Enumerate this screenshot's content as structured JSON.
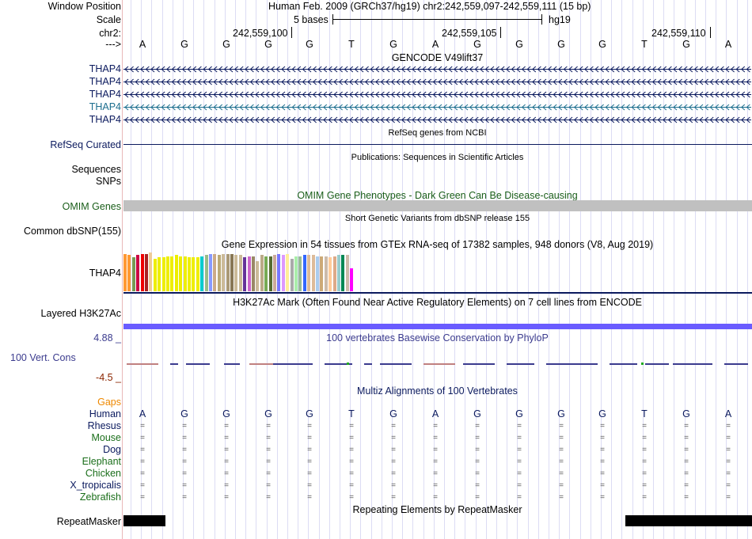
{
  "header": {
    "window_position_label": "Window Position",
    "scale_label": "Scale",
    "chr_label": "chr2:",
    "arrow_label": "--->",
    "assembly_text": "Human Feb. 2009 (GRCh37/hg19)   chr2:242,559,097-242,559,111 (15 bp)",
    "scale_text": "5 bases",
    "scale_db": "hg19",
    "positions": [
      "242,559,100",
      "242,559,105",
      "242,559,110"
    ]
  },
  "sequence": [
    "A",
    "G",
    "G",
    "G",
    "G",
    "T",
    "G",
    "A",
    "G",
    "G",
    "G",
    "G",
    "T",
    "G",
    "A"
  ],
  "gencode": {
    "title": "GENCODE V49lift37",
    "transcripts": [
      {
        "label": "THAP4",
        "color": "#0b1a5e"
      },
      {
        "label": "THAP4",
        "color": "#0b1a5e"
      },
      {
        "label": "THAP4",
        "color": "#0b1a5e"
      },
      {
        "label": "THAP4",
        "color": "#1c6e8e"
      },
      {
        "label": "THAP4",
        "color": "#0b1a5e"
      }
    ]
  },
  "refseq": {
    "title": "RefSeq genes from NCBI",
    "label": "RefSeq Curated"
  },
  "publications": {
    "title": "Publications: Sequences in Scientific Articles",
    "label": "Sequences"
  },
  "snps": {
    "label": "SNPs"
  },
  "omim": {
    "title": "OMIM Gene Phenotypes - Dark Green Can Be Disease-causing",
    "label": "OMIM Genes"
  },
  "dbsnp": {
    "title": "Short Genetic Variants from dbSNP release 155",
    "label": "Common dbSNP(155)"
  },
  "gtex": {
    "title": "Gene Expression in 54 tissues from GTEx RNA-seq of 17382 samples, 948 donors (V8, Aug 2019)",
    "label": "THAP4",
    "tissues": [
      {
        "color": "#ff9933",
        "level": 0.93
      },
      {
        "color": "#ff9933",
        "level": 0.9
      },
      {
        "color": "#779955",
        "level": 0.84
      },
      {
        "color": "#cc0044",
        "level": 0.9
      },
      {
        "color": "#ee0000",
        "level": 0.93
      },
      {
        "color": "#aa2222",
        "level": 0.93
      },
      {
        "color": "#eecc99",
        "level": 0.96
      },
      {
        "color": "#eeee00",
        "level": 0.8
      },
      {
        "color": "#eeee00",
        "level": 0.84
      },
      {
        "color": "#eeee00",
        "level": 0.84
      },
      {
        "color": "#eeee00",
        "level": 0.87
      },
      {
        "color": "#eeee00",
        "level": 0.87
      },
      {
        "color": "#eeee00",
        "level": 0.9
      },
      {
        "color": "#eeee00",
        "level": 0.87
      },
      {
        "color": "#eeee00",
        "level": 0.87
      },
      {
        "color": "#eeee00",
        "level": 0.84
      },
      {
        "color": "#eeee00",
        "level": 0.84
      },
      {
        "color": "#eeee00",
        "level": 0.84
      },
      {
        "color": "#00cccc",
        "level": 0.87
      },
      {
        "color": "#99bb88",
        "level": 0.9
      },
      {
        "color": "#8899ff",
        "level": 0.93
      },
      {
        "color": "#ccaa88",
        "level": 0.93
      },
      {
        "color": "#bbaa77",
        "level": 0.9
      },
      {
        "color": "#ccbb99",
        "level": 0.93
      },
      {
        "color": "#aa9977",
        "level": 0.93
      },
      {
        "color": "#887755",
        "level": 0.93
      },
      {
        "color": "#ccbb99",
        "level": 0.9
      },
      {
        "color": "#ccbb99",
        "level": 0.9
      },
      {
        "color": "#663399",
        "level": 0.84
      },
      {
        "color": "#cc66cc",
        "level": 0.87
      },
      {
        "color": "#998866",
        "level": 0.87
      },
      {
        "color": "#ccbb99",
        "level": 0.74
      },
      {
        "color": "#bbaa88",
        "level": 0.9
      },
      {
        "color": "#77aa55",
        "level": 0.87
      },
      {
        "color": "#556b2f",
        "level": 0.87
      },
      {
        "color": "#ccaa99",
        "level": 0.9
      },
      {
        "color": "#7777ff",
        "level": 0.93
      },
      {
        "color": "#dd99ff",
        "level": 0.9
      },
      {
        "color": "#ffee99",
        "level": 0.93
      },
      {
        "color": "#aaaaaa",
        "level": 0.8
      },
      {
        "color": "#aaeeaa",
        "level": 0.87
      },
      {
        "color": "#99bb99",
        "level": 0.87
      },
      {
        "color": "#3366ff",
        "level": 0.9
      },
      {
        "color": "#ddbb99",
        "level": 0.9
      },
      {
        "color": "#ddbb99",
        "level": 0.9
      },
      {
        "color": "#aaccee",
        "level": 0.87
      },
      {
        "color": "#ccaa77",
        "level": 0.87
      },
      {
        "color": "#ccbbaa",
        "level": 0.87
      },
      {
        "color": "#ffcc99",
        "level": 0.84
      },
      {
        "color": "#ddaa88",
        "level": 0.87
      },
      {
        "color": "#99cccc",
        "level": 0.9
      },
      {
        "color": "#008855",
        "level": 0.9
      },
      {
        "color": "#ccbbaa",
        "level": 0.9
      },
      {
        "color": "#ff00ff",
        "level": 0.57
      }
    ]
  },
  "h3k27ac": {
    "title": "H3K27Ac Mark (Often Found Near Active Regulatory Elements) on 7 cell lines from ENCODE",
    "label": "Layered H3K27Ac"
  },
  "conservation": {
    "title": "100 vertebrates Basewise Conservation by PhyloP",
    "label": "100 Vert. Cons",
    "max_label": "4.88 _",
    "min_label": "-4.5 _"
  },
  "multiz": {
    "title": "Multiz Alignments of 100 Vertebrates",
    "gaps_label": "Gaps",
    "human_label": "Human",
    "species": [
      {
        "name": "Rhesus",
        "color": "#0b1a5e"
      },
      {
        "name": "Mouse",
        "color": "#1a6e1a"
      },
      {
        "name": "Dog",
        "color": "#0b1a5e"
      },
      {
        "name": "Elephant",
        "color": "#1a6e1a"
      },
      {
        "name": "Chicken",
        "color": "#1a6e1a"
      },
      {
        "name": "X_tropicalis",
        "color": "#0b1a5e"
      },
      {
        "name": "Zebrafish",
        "color": "#1a6e1a"
      }
    ],
    "match_symbol": "="
  },
  "repeatmasker": {
    "title": "Repeating Elements by RepeatMasker",
    "label": "RepeatMasker"
  },
  "colors": {
    "track_blue": "#0b1a5e",
    "omim_green": "#1a5e1a",
    "gaps_orange": "#ee8800",
    "cons_title": "#3b3b8e",
    "cons_max": "#3b3b8e",
    "cons_min": "#8b2500"
  }
}
